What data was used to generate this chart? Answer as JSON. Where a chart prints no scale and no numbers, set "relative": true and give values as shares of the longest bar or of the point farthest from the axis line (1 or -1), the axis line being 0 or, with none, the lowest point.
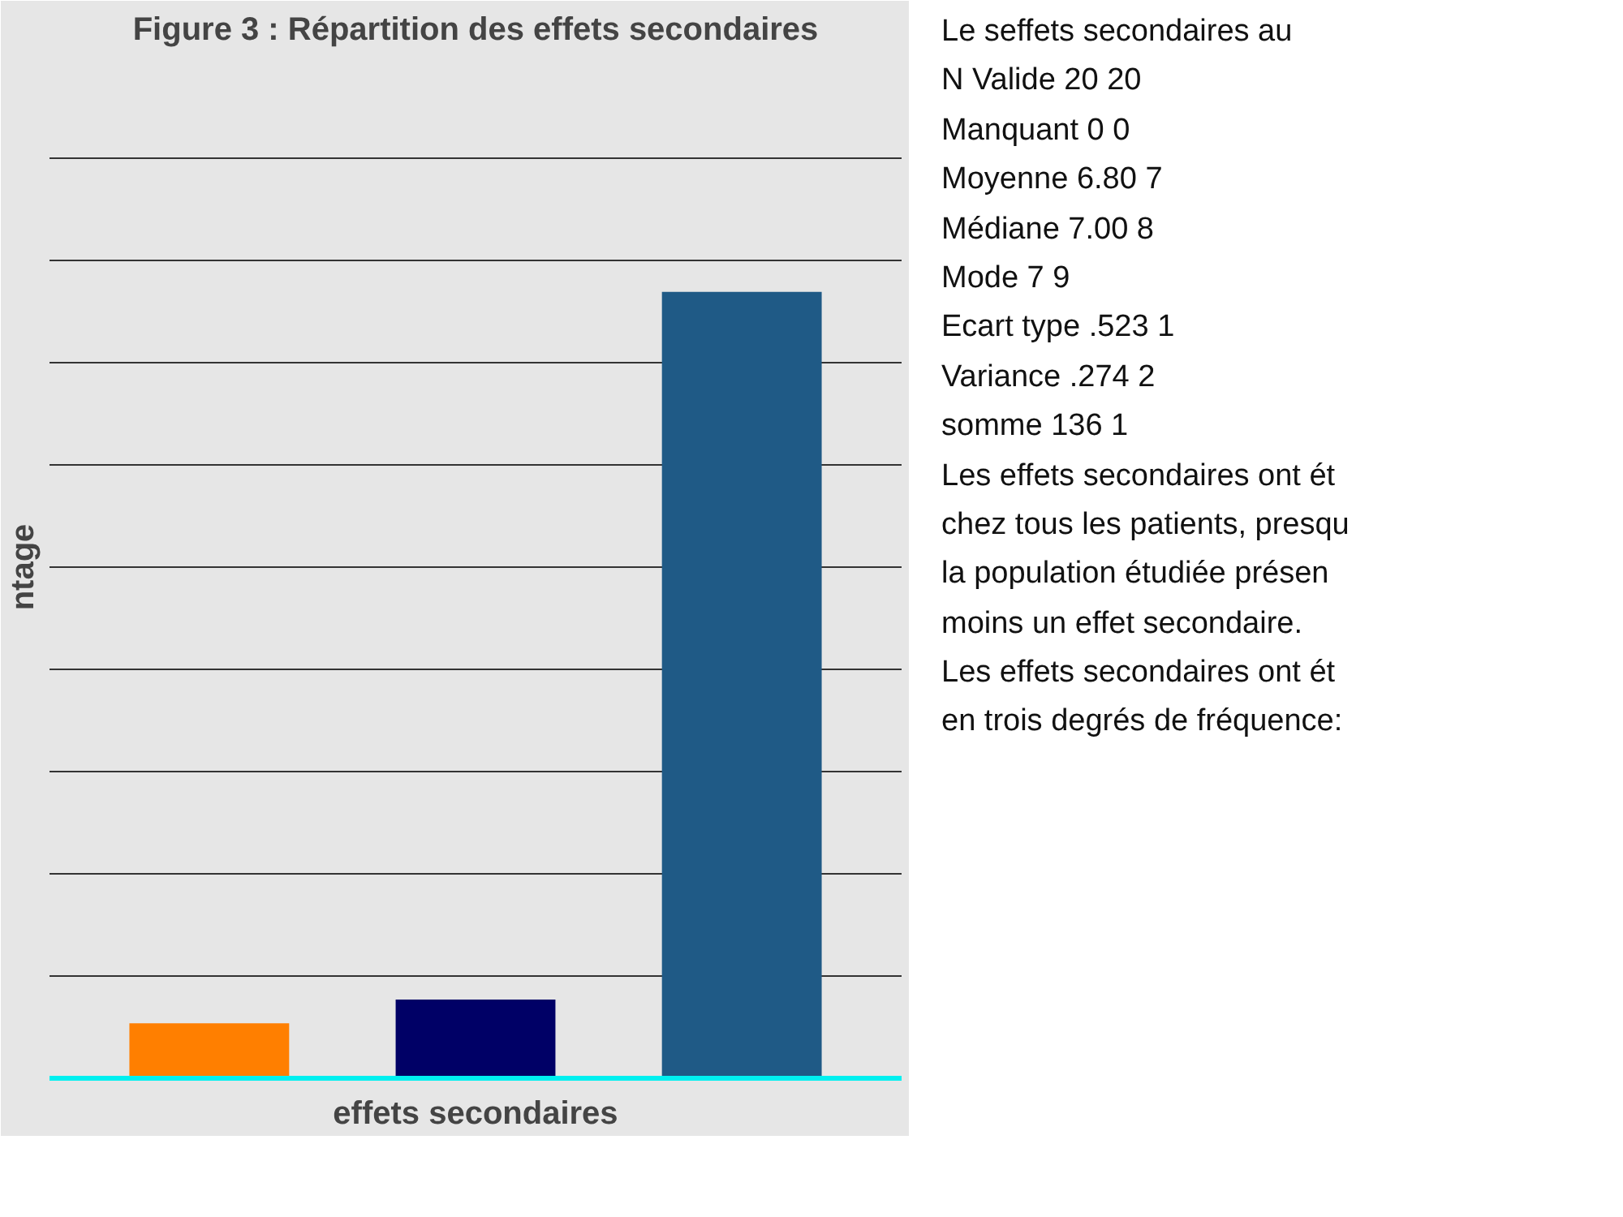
{
  "chart_data": {
    "type": "bar",
    "title": "Figure 3 : Répartition des effets secondaires",
    "ylabel": "ntage",
    "xlabel": "effets secondaires",
    "categories": [
      null,
      null,
      null
    ],
    "values": [
      0.07,
      0.1,
      1
    ],
    "colors": [
      "#ff7f00",
      "#000066",
      "#1f5a86"
    ],
    "relative": true,
    "grid": "y",
    "annotations": [
      "Le seffets secondaires   au",
      "N   Valide   20   20",
      "Manquant   0   0",
      "Moyenne   6.80   7",
      "Médiane   7.00   8",
      "Mode   7   9",
      "Ecart type   .523   1",
      "Variance   .274   2",
      "somme   136   1",
      "Les effets secondaires ont ét",
      "chez tous les patients, presqu",
      "la population étudiée présen",
      "moins un effet secondaire.",
      "Les effets secondaires ont ét",
      "en trois degrés de fréquence:"
    ]
  }
}
